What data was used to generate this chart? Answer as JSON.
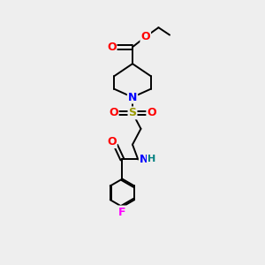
{
  "background_color": "#eeeeee",
  "atom_colors": {
    "C": "#000000",
    "N": "#0000ff",
    "O": "#ff0000",
    "S": "#999900",
    "F": "#ff00ff",
    "H": "#008080"
  },
  "figsize": [
    3.0,
    3.0
  ],
  "dpi": 100,
  "lw": 1.4
}
